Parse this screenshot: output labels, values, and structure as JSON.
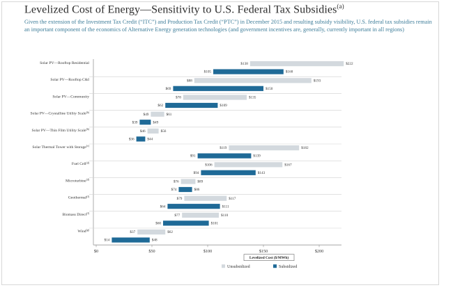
{
  "header": {
    "title": "Levelized Cost of Energy—Sensitivity to U.S. Federal Tax Subsidies",
    "title_note": "(a)",
    "subtitle": "Given the extension of the Investment Tax Credit (“ITC”) and Production Tax Credit (“PTC”) in December 2015 and resulting subsidy visibility, U.S. federal tax subsidies remain an important component of the economics of Alternative Energy generation technologies (and government incentives are, generally, currently important in all regions)"
  },
  "colors": {
    "unsubsidized": "#d3d9de",
    "subsidized": "#1f6a97",
    "grid": "#b9b9b9"
  },
  "chart_data": {
    "type": "bar",
    "orientation": "horizontal-range",
    "xlabel": "Levelized Cost ($/MWh)",
    "xlim": [
      0,
      230
    ],
    "xticks": [
      0,
      50,
      100,
      150,
      200
    ],
    "tick_labels": [
      "$0",
      "$50",
      "$100",
      "$150",
      "$200"
    ],
    "legend_position": "bottom-center",
    "legend": [
      "Unsubsidized",
      "Subsidized"
    ],
    "categories": [
      {
        "name": "Solar PV—Rooftop Residential",
        "note": "",
        "unsub": [
          138,
          222
        ],
        "unsub_labels": [
          "$138",
          "$222"
        ],
        "sub": [
          105,
          168
        ],
        "sub_labels": [
          "$105",
          "$168"
        ]
      },
      {
        "name": "Solar PV—Rooftop C&I",
        "note": "",
        "unsub": [
          88,
          193
        ],
        "unsub_labels": [
          "$88",
          "$193"
        ],
        "sub": [
          69,
          150
        ],
        "sub_labels": [
          "$69",
          "$150"
        ]
      },
      {
        "name": "Solar PV—Community",
        "note": "",
        "unsub": [
          78,
          135
        ],
        "unsub_labels": [
          "$78",
          "$135"
        ],
        "sub": [
          62,
          109
        ],
        "sub_labels": [
          "$62",
          "$109"
        ]
      },
      {
        "name": "Solar PV—Crystalline Utility Scale",
        "note": "(b)",
        "unsub": [
          49,
          61
        ],
        "unsub_labels": [
          "$49",
          "$61"
        ],
        "sub": [
          39,
          49
        ],
        "sub_labels": [
          "$39",
          "$49"
        ]
      },
      {
        "name": "Solar PV—Thin Film Utility Scale",
        "note": "(b)",
        "unsub": [
          46,
          56
        ],
        "unsub_labels": [
          "$46",
          "$56"
        ],
        "sub": [
          36,
          44
        ],
        "sub_labels": [
          "$36",
          "$44"
        ]
      },
      {
        "name": "Solar Thermal Tower with Storage",
        "note": "(c)",
        "unsub": [
          119,
          182
        ],
        "unsub_labels": [
          "$119",
          "$182"
        ],
        "sub": [
          91,
          139
        ],
        "sub_labels": [
          "$91",
          "$139"
        ]
      },
      {
        "name": "Fuel Cell",
        "note": "(d)",
        "unsub": [
          106,
          167
        ],
        "unsub_labels": [
          "$106",
          "$167"
        ],
        "sub": [
          94,
          143
        ],
        "sub_labels": [
          "$94",
          "$143"
        ]
      },
      {
        "name": "Microturbine",
        "note": "(d)",
        "unsub": [
          76,
          89
        ],
        "unsub_labels": [
          "$76",
          "$89"
        ],
        "sub": [
          74,
          86
        ],
        "sub_labels": [
          "$74",
          "$86"
        ]
      },
      {
        "name": "Geothermal",
        "note": "(f)",
        "unsub": [
          79,
          117
        ],
        "unsub_labels": [
          "$79",
          "$117"
        ],
        "sub": [
          64,
          111
        ],
        "sub_labels": [
          "$64",
          "$111"
        ]
      },
      {
        "name": "Biomass Direct",
        "note": "(f)",
        "unsub": [
          77,
          110
        ],
        "unsub_labels": [
          "$77",
          "$110"
        ],
        "sub": [
          60,
          101
        ],
        "sub_labels": [
          "$60",
          "$101"
        ]
      },
      {
        "name": "Wind",
        "note": "(g)",
        "unsub": [
          37,
          62
        ],
        "unsub_labels": [
          "$37",
          "$62"
        ],
        "sub": [
          14,
          48
        ],
        "sub_labels": [
          "$14",
          "$48"
        ]
      }
    ]
  }
}
